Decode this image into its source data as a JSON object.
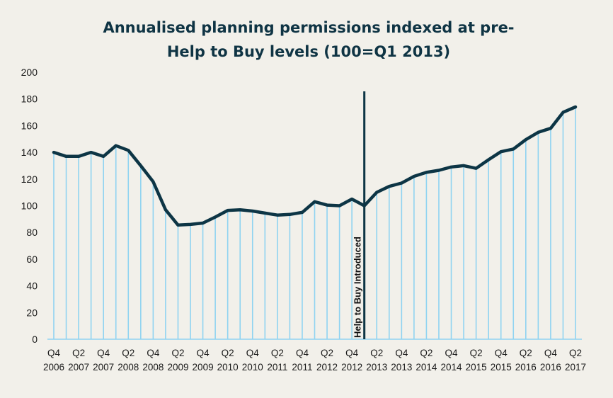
{
  "chart_data": {
    "type": "line",
    "title": "Annualised planning permissions indexed at pre-Help to Buy levels (100=Q1 2013)",
    "title_lines": [
      "Annualised planning permissions indexed at pre-",
      "Help to Buy levels (100=Q1 2013)"
    ],
    "xlabel": "",
    "ylabel": "",
    "ylim": [
      0,
      200
    ],
    "yticks": [
      0,
      20,
      40,
      60,
      80,
      100,
      120,
      140,
      160,
      180,
      200
    ],
    "grid": false,
    "legend": "none",
    "x": [
      "Q4 2006",
      "Q1 2007",
      "Q2 2007",
      "Q3 2007",
      "Q4 2007",
      "Q1 2008",
      "Q2 2008",
      "Q3 2008",
      "Q4 2008",
      "Q1 2009",
      "Q2 2009",
      "Q3 2009",
      "Q4 2009",
      "Q1 2010",
      "Q2 2010",
      "Q3 2010",
      "Q4 2010",
      "Q1 2011",
      "Q2 2011",
      "Q3 2011",
      "Q4 2011",
      "Q1 2012",
      "Q2 2012",
      "Q3 2012",
      "Q4 2012",
      "Q1 2013",
      "Q2 2013",
      "Q3 2013",
      "Q4 2013",
      "Q1 2014",
      "Q2 2014",
      "Q3 2014",
      "Q4 2014",
      "Q1 2015",
      "Q2 2015",
      "Q3 2015",
      "Q4 2015",
      "Q1 2016",
      "Q2 2016",
      "Q3 2016",
      "Q4 2016",
      "Q1 2017",
      "Q2 2017"
    ],
    "xtick_labels": [
      [
        "Q4",
        "2006"
      ],
      [
        "Q2",
        "2007"
      ],
      [
        "Q4",
        "2007"
      ],
      [
        "Q2",
        "2008"
      ],
      [
        "Q4",
        "2008"
      ],
      [
        "Q2",
        "2009"
      ],
      [
        "Q4",
        "2009"
      ],
      [
        "Q2",
        "2010"
      ],
      [
        "Q4",
        "2010"
      ],
      [
        "Q2",
        "2011"
      ],
      [
        "Q4",
        "2011"
      ],
      [
        "Q2",
        "2012"
      ],
      [
        "Q4",
        "2012"
      ],
      [
        "Q2",
        "2013"
      ],
      [
        "Q4",
        "2013"
      ],
      [
        "Q2",
        "2014"
      ],
      [
        "Q4",
        "2014"
      ],
      [
        "Q2",
        "2015"
      ],
      [
        "Q4",
        "2015"
      ],
      [
        "Q2",
        "2016"
      ],
      [
        "Q4",
        "2016"
      ],
      [
        "Q2",
        "2017"
      ]
    ],
    "series": [
      {
        "name": "Planning permissions index",
        "values": [
          140,
          137,
          137,
          140,
          137,
          145,
          141.5,
          130,
          118,
          97,
          85.5,
          86,
          87,
          91.5,
          96.5,
          97,
          96,
          94.5,
          93,
          93.5,
          95,
          103,
          100.5,
          100,
          105,
          100,
          110,
          114.5,
          117,
          122,
          125,
          126.5,
          129,
          130,
          128,
          134.5,
          140.5,
          142.5,
          149.5,
          155,
          158,
          170,
          174
        ]
      }
    ],
    "annotations": [
      {
        "text": "Help to Buy Introduced",
        "at": "Q1 2013",
        "type": "vertical-line"
      }
    ]
  },
  "colors": {
    "background": "#f2f0ea",
    "line": "#0d3545",
    "droplines": "#8fd3f1",
    "title": "#0f3444"
  }
}
